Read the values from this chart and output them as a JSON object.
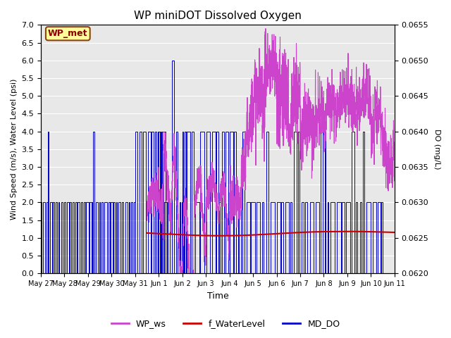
{
  "title": "WP miniDOT Dissolved Oxygen",
  "ylabel_left": "Wind Speed (m/s), Water Level (psi)",
  "ylabel_right": "DO (mg/L)",
  "xlabel": "Time",
  "ylim_left": [
    0.0,
    7.0
  ],
  "ylim_right": [
    0.062,
    0.0655
  ],
  "yticks_left": [
    0.0,
    0.5,
    1.0,
    1.5,
    2.0,
    2.5,
    3.0,
    3.5,
    4.0,
    4.5,
    5.0,
    5.5,
    6.0,
    6.5,
    7.0
  ],
  "yticks_right": [
    0.062,
    0.0625,
    0.063,
    0.0635,
    0.064,
    0.0645,
    0.065,
    0.0655
  ],
  "xtick_labels": [
    "May 27",
    "May 28",
    "May 29",
    "May 30",
    "May 31",
    "Jun 1",
    "Jun 2",
    "Jun 3",
    "Jun 4",
    "Jun 5",
    "Jun 6",
    "Jun 7",
    "Jun 8",
    "Jun 9",
    "Jun 10",
    "Jun 11"
  ],
  "annotation_text": "WP_met",
  "annotation_bg": "#FFFF99",
  "annotation_edge": "#8B4513",
  "annotation_text_color": "#8B0000",
  "legend_labels": [
    "WP_ws",
    "f_WaterLevel",
    "MD_DO"
  ],
  "legend_colors": [
    "#CC44CC",
    "#CC0000",
    "#0000CC"
  ],
  "line_WP_ws_color": "#CC44CC",
  "line_fWaterLevel_color": "#CC0000",
  "line_MD_DO_color": "#0000CC",
  "background_color": "#E8E8E8",
  "grid_color": "#FFFFFF",
  "fig_bg_color": "#FFFFFF",
  "xmin": 0.0,
  "xmax": 15.0
}
